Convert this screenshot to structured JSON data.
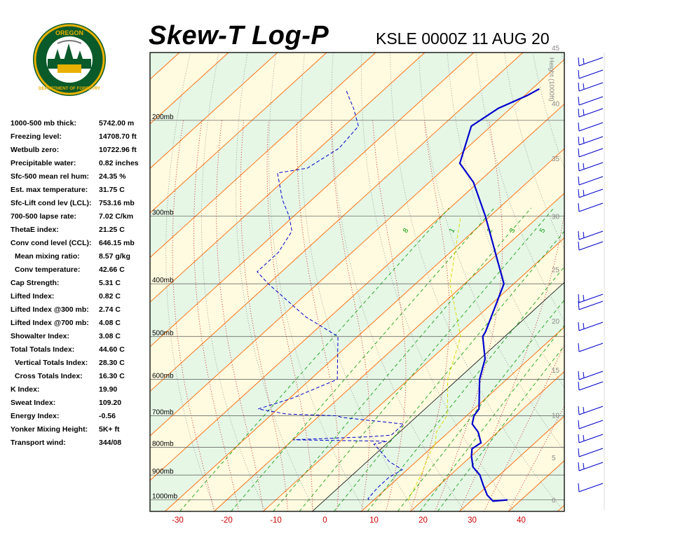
{
  "logo": {
    "text_top": "OREGON",
    "text_bottom": "DEPARTMENT OF FORESTRY"
  },
  "header": {
    "title": "Skew-T Log-P",
    "station": "KSLE 0000Z 11 AUG 20"
  },
  "stats": [
    {
      "label": "1000-500 mb thick:",
      "value": "5742.00 m",
      "indent": false
    },
    {
      "label": "Freezing level:",
      "value": "14708.70 ft",
      "indent": false
    },
    {
      "label": "Wetbulb zero:",
      "value": "10722.96 ft",
      "indent": false
    },
    {
      "label": "Precipitable water:",
      "value": "0.82 inches",
      "indent": false
    },
    {
      "label": "Sfc-500 mean rel hum:",
      "value": "24.35 %",
      "indent": false
    },
    {
      "label": "Est. max temperature:",
      "value": "31.75 C",
      "indent": false
    },
    {
      "label": "Sfc-Lift cond lev (LCL):",
      "value": "753.16 mb",
      "indent": false
    },
    {
      "label": "700-500 lapse rate:",
      "value": "7.02 C/km",
      "indent": false
    },
    {
      "label": "ThetaE index:",
      "value": "21.25 C",
      "indent": false
    },
    {
      "label": "Conv cond level (CCL):",
      "value": "646.15 mb",
      "indent": false
    },
    {
      "label": "Mean mixing ratio:",
      "value": "8.57 g/kg",
      "indent": true
    },
    {
      "label": "Conv temperature:",
      "value": "42.66 C",
      "indent": true
    },
    {
      "label": "Cap Strength:",
      "value": "5.31 C",
      "indent": false
    },
    {
      "label": "Lifted Index:",
      "value": "0.82 C",
      "indent": false
    },
    {
      "label": "Lifted Index @300 mb:",
      "value": "2.74 C",
      "indent": false
    },
    {
      "label": "Lifted Index @700 mb:",
      "value": "4.08 C",
      "indent": false
    },
    {
      "label": "Showalter Index:",
      "value": "3.08 C",
      "indent": false
    },
    {
      "label": "Total Totals Index:",
      "value": "44.60 C",
      "indent": false
    },
    {
      "label": "Vertical Totals Index:",
      "value": "28.30 C",
      "indent": true
    },
    {
      "label": "Cross Totals Index:",
      "value": "16.30 C",
      "indent": true
    },
    {
      "label": "K Index:",
      "value": "19.90",
      "indent": false
    },
    {
      "label": "Sweat Index:",
      "value": "109.20",
      "indent": false
    },
    {
      "label": "Energy Index:",
      "value": "-0.56",
      "indent": false
    },
    {
      "label": "Yonker Mixing Height:",
      "value": "5K+ ft",
      "indent": false
    },
    {
      "label": "Transport wind:",
      "value": "344/08",
      "indent": false
    }
  ],
  "chart_data": {
    "type": "line",
    "chart_kind": "skew-t log-p",
    "title": "Skew-T Log-P",
    "subtitle": "KSLE 0000Z 11 AUG 20",
    "xlim": [
      -35,
      48
    ],
    "x_ticks": [
      -30,
      -20,
      -10,
      0,
      10,
      20,
      30,
      40
    ],
    "pressure_range_mb": [
      1050,
      150
    ],
    "pressure_levels_mb": [
      1000,
      900,
      800,
      700,
      600,
      500,
      400,
      300,
      200
    ],
    "pressure_labels": [
      "1000mb",
      "900mb",
      "800mb",
      "700mb",
      "600mb",
      "500mb",
      "400mb",
      "300mb",
      "200mb"
    ],
    "height_axis_label": "Height (1000ft)",
    "height_ticks_kft": [
      {
        "label": "0",
        "p": 1000
      },
      {
        "label": "5",
        "p": 835
      },
      {
        "label": "10",
        "p": 698
      },
      {
        "label": "15",
        "p": 576
      },
      {
        "label": "20",
        "p": 468
      },
      {
        "label": "25",
        "p": 376
      },
      {
        "label": "30",
        "p": 300
      },
      {
        "label": "35",
        "p": 235
      },
      {
        "label": "40",
        "p": 186
      },
      {
        "label": "45",
        "p": 147
      },
      {
        "label": "50",
        "p": 117
      }
    ],
    "mixing_ratio_labels": [
      {
        "label": "8",
        "p": 290
      },
      {
        "label": "1",
        "p": 290
      },
      {
        "label": "2",
        "p": 290
      },
      {
        "label": "3",
        "p": 290
      },
      {
        "label": "5",
        "p": 290
      }
    ],
    "series": [
      {
        "name": "Temperature",
        "color": "#0000cc",
        "style": "solid",
        "points": [
          {
            "p": 1000,
            "t": 37.2
          },
          {
            "p": 1005,
            "t": 34.5
          },
          {
            "p": 980,
            "t": 32.0
          },
          {
            "p": 940,
            "t": 29.0
          },
          {
            "p": 900,
            "t": 26.0
          },
          {
            "p": 870,
            "t": 22.8
          },
          {
            "p": 830,
            "t": 20.0
          },
          {
            "p": 805,
            "t": 18.5
          },
          {
            "p": 785,
            "t": 19.0
          },
          {
            "p": 750,
            "t": 16.0
          },
          {
            "p": 725,
            "t": 13.0
          },
          {
            "p": 700,
            "t": 11.5
          },
          {
            "p": 680,
            "t": 11.0
          },
          {
            "p": 600,
            "t": 4.5
          },
          {
            "p": 550,
            "t": 1.0
          },
          {
            "p": 500,
            "t": -4.5
          },
          {
            "p": 490,
            "t": -5.0
          },
          {
            "p": 400,
            "t": -12.0
          },
          {
            "p": 300,
            "t": -31.0
          },
          {
            "p": 260,
            "t": -41.0
          },
          {
            "p": 240,
            "t": -48.0
          },
          {
            "p": 205,
            "t": -54.0
          },
          {
            "p": 190,
            "t": -52.5
          },
          {
            "p": 180,
            "t": -49.5
          },
          {
            "p": 175,
            "t": -48.5
          }
        ]
      },
      {
        "name": "Dewpoint",
        "color": "#0000cc",
        "style": "dashed",
        "points": [
          {
            "p": 1000,
            "t": 9.0
          },
          {
            "p": 995,
            "t": 8.5
          },
          {
            "p": 950,
            "t": 8.0
          },
          {
            "p": 910,
            "t": 8.0
          },
          {
            "p": 880,
            "t": 9.0
          },
          {
            "p": 850,
            "t": 4.5
          },
          {
            "p": 810,
            "t": 0.0
          },
          {
            "p": 790,
            "t": -2.5
          },
          {
            "p": 780,
            "t": -0.5
          },
          {
            "p": 775,
            "t": -20.0
          },
          {
            "p": 765,
            "t": -5.0
          },
          {
            "p": 760,
            "t": -1.0
          },
          {
            "p": 725,
            "t": -1.0
          },
          {
            "p": 705,
            "t": -15.0
          },
          {
            "p": 700,
            "t": -16.5
          },
          {
            "p": 695,
            "t": -27.0
          },
          {
            "p": 680,
            "t": -34.0
          },
          {
            "p": 650,
            "t": -29.5
          },
          {
            "p": 600,
            "t": -24.5
          },
          {
            "p": 500,
            "t": -34.0
          },
          {
            "p": 460,
            "t": -45.0
          },
          {
            "p": 400,
            "t": -60.0
          },
          {
            "p": 380,
            "t": -65.0
          },
          {
            "p": 350,
            "t": -65.0
          },
          {
            "p": 320,
            "t": -67.0
          },
          {
            "p": 300,
            "t": -71.0
          },
          {
            "p": 280,
            "t": -76.0
          },
          {
            "p": 250,
            "t": -83.0
          },
          {
            "p": 245,
            "t": -78.0
          },
          {
            "p": 225,
            "t": -76.0
          },
          {
            "p": 205,
            "t": -77.0
          },
          {
            "p": 190,
            "t": -82.0
          },
          {
            "p": 175,
            "t": -88.0
          }
        ]
      },
      {
        "name": "Wetbulb",
        "color": "#dddd00",
        "style": "dashed",
        "points": [
          {
            "p": 1000,
            "t": 17.0
          },
          {
            "p": 900,
            "t": 14.0
          },
          {
            "p": 810,
            "t": 10.5
          },
          {
            "p": 790,
            "t": 10.0
          },
          {
            "p": 750,
            "t": 7.5
          },
          {
            "p": 700,
            "t": 6.0
          },
          {
            "p": 660,
            "t": 3.0
          },
          {
            "p": 600,
            "t": -2.0
          },
          {
            "p": 500,
            "t": -9.0
          },
          {
            "p": 400,
            "t": -23.0
          },
          {
            "p": 300,
            "t": -36.0
          }
        ]
      }
    ],
    "wind_barbs_column": "right",
    "grid": true,
    "legend": "none"
  },
  "colors": {
    "temperature": "#0000cc",
    "dewpoint": "#0000cc",
    "isotherm": "#ff6600",
    "dry_adiabat": "#999999",
    "moist_adiabat": "#cc0000",
    "mixing_ratio": "#009900",
    "band_yellow": "#fffbe0",
    "band_green": "#e6f7e6",
    "tick_red": "#cc0000",
    "height_label": "#888888"
  }
}
